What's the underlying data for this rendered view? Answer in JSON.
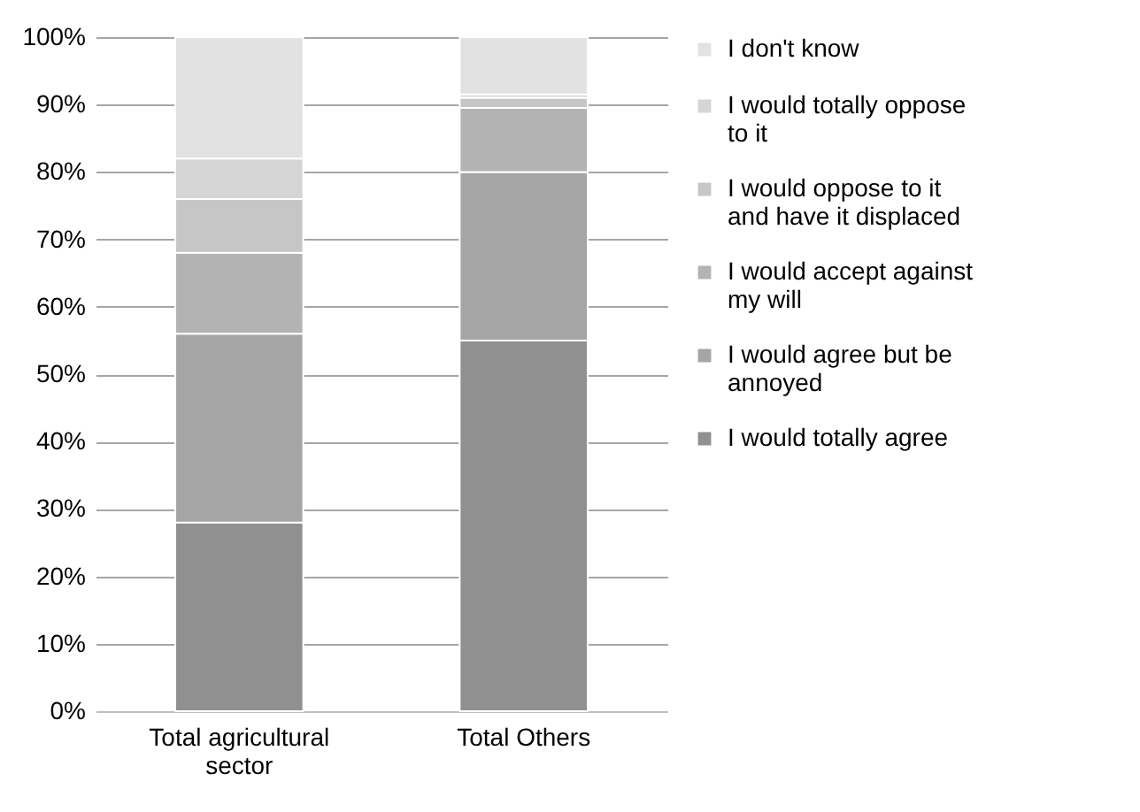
{
  "chart_data": {
    "type": "bar",
    "stacked": true,
    "categories": [
      "Total agricultural sector",
      "Total Others"
    ],
    "series": [
      {
        "name": "I would totally agree",
        "color": "#909090",
        "values": [
          28,
          55
        ]
      },
      {
        "name": "I would agree but be annoyed",
        "color": "#a5a5a5",
        "values": [
          28,
          25
        ]
      },
      {
        "name": "I would accept against my will",
        "color": "#b3b3b3",
        "values": [
          12,
          9.5
        ]
      },
      {
        "name": "I would oppose to it and have it displaced",
        "color": "#c6c6c6",
        "values": [
          8,
          1.5
        ]
      },
      {
        "name": "I would totally oppose to it",
        "color": "#d5d5d5",
        "values": [
          6,
          0.5
        ]
      },
      {
        "name": "I don't know",
        "color": "#e2e2e2",
        "values": [
          18,
          8.5
        ]
      }
    ],
    "ylim": [
      0,
      100
    ],
    "yticks": [
      {
        "value": 0,
        "label": "0%"
      },
      {
        "value": 10,
        "label": "10%"
      },
      {
        "value": 20,
        "label": "20%"
      },
      {
        "value": 30,
        "label": "30%"
      },
      {
        "value": 40,
        "label": "40%"
      },
      {
        "value": 50,
        "label": "50%"
      },
      {
        "value": 60,
        "label": "60%"
      },
      {
        "value": 70,
        "label": "70%"
      },
      {
        "value": 80,
        "label": "80%"
      },
      {
        "value": 90,
        "label": "90%"
      },
      {
        "value": 100,
        "label": "100%"
      }
    ],
    "grid": "y",
    "legend": "right"
  }
}
